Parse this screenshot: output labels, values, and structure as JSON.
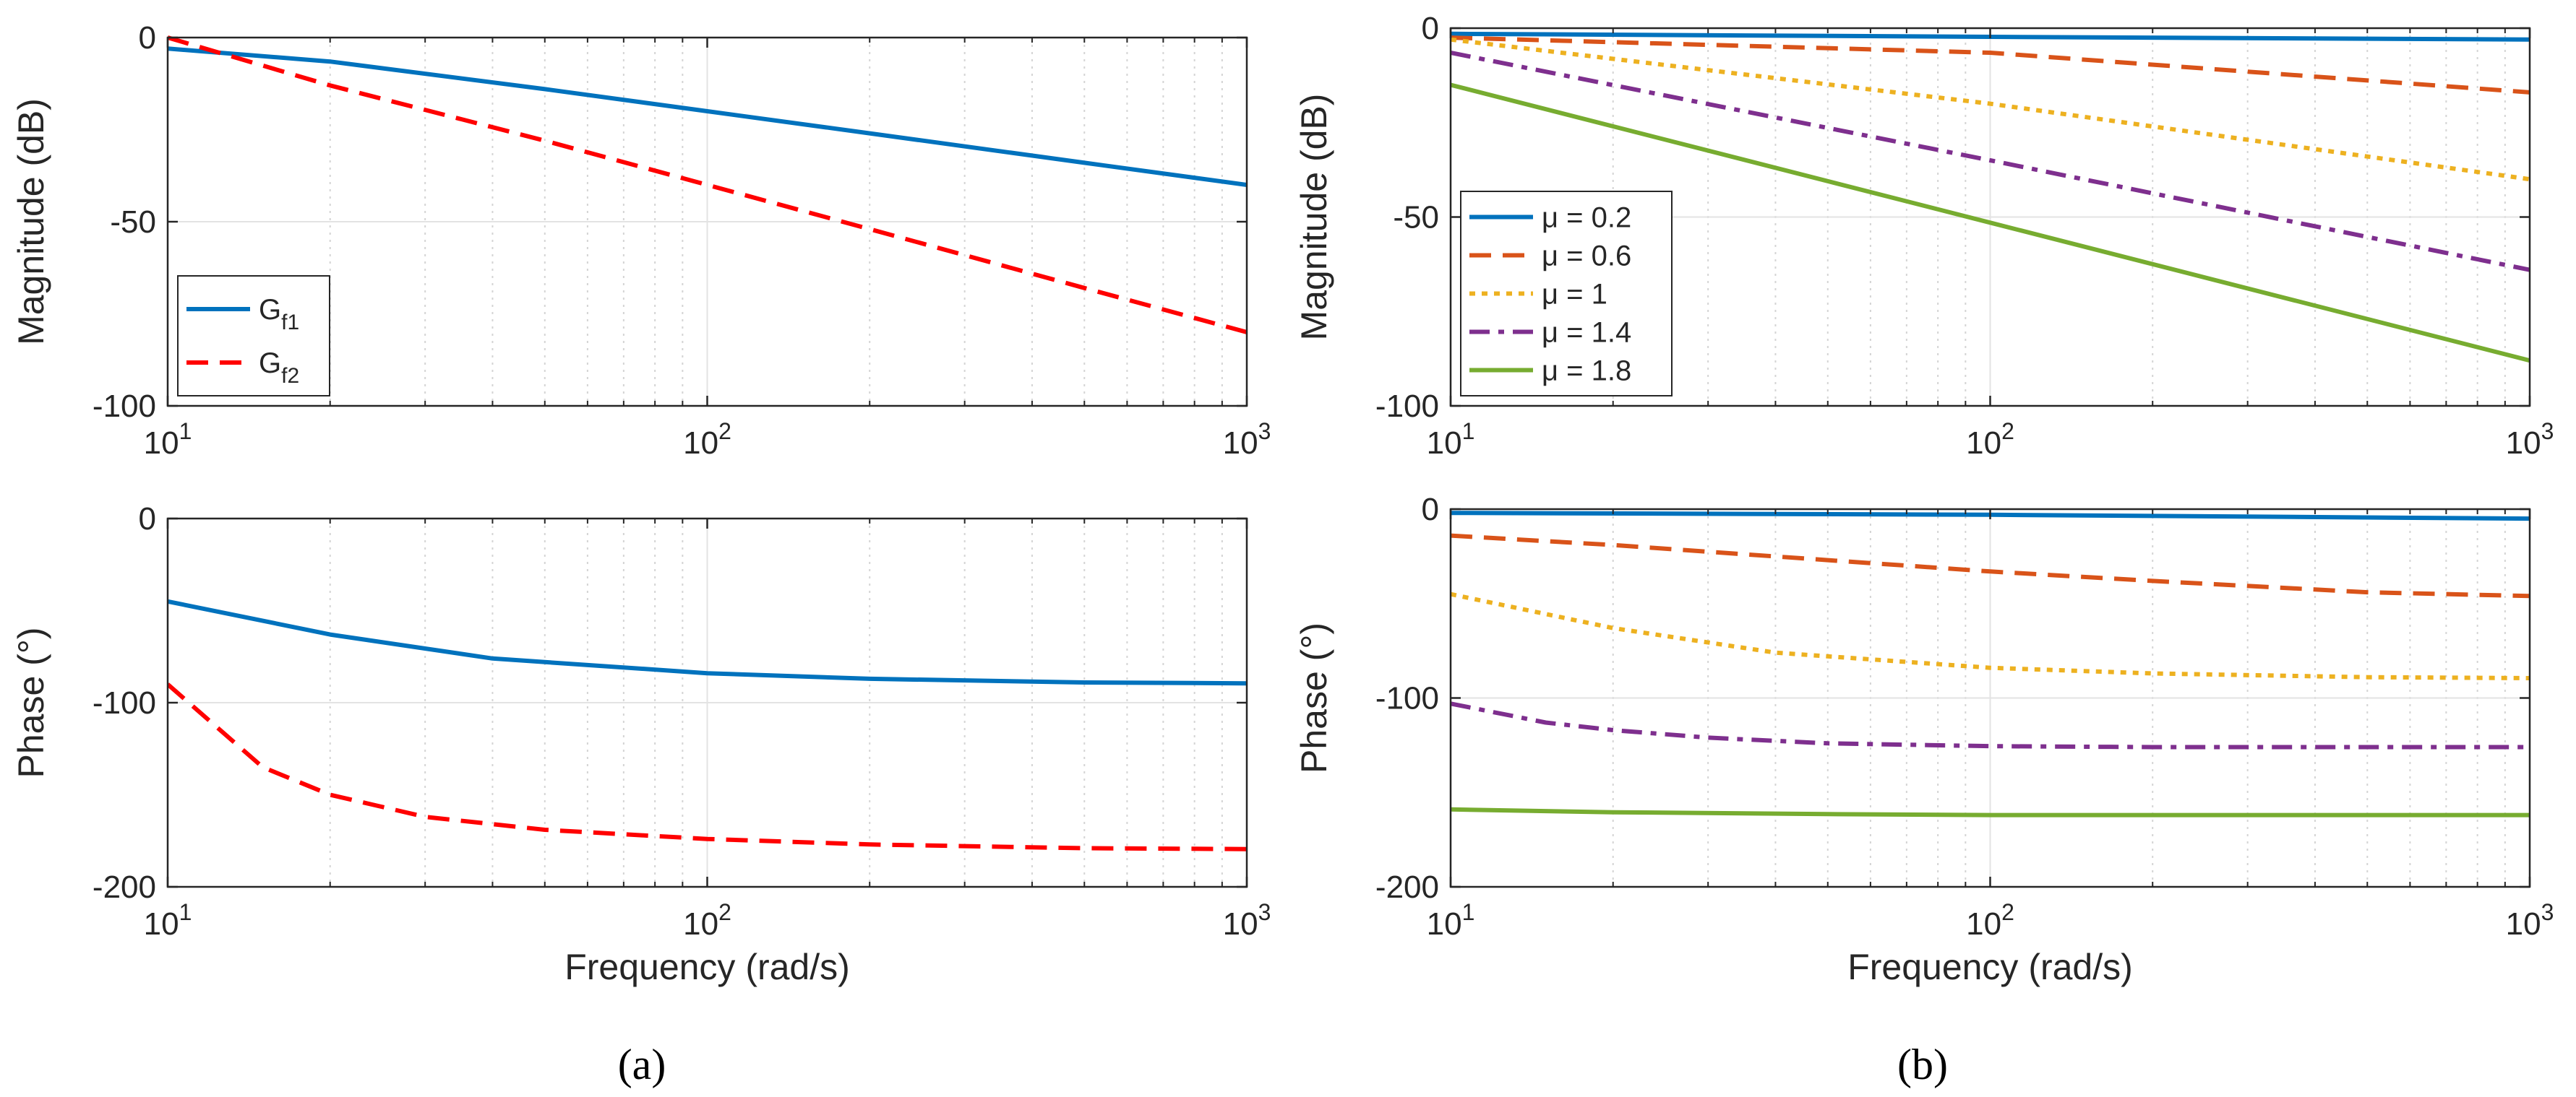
{
  "chart_data": [
    {
      "id": "a-mag",
      "type": "line",
      "xscale": "log",
      "xlim": [
        10,
        1000
      ],
      "ylim": [
        -100,
        0
      ],
      "xticks": [
        10,
        100,
        1000
      ],
      "xtick_labels": [
        {
          "base": "10",
          "exp": "1"
        },
        {
          "base": "10",
          "exp": "2"
        },
        {
          "base": "10",
          "exp": "3"
        }
      ],
      "yticks": [
        -100,
        -50,
        0
      ],
      "ytick_labels": [
        "-100",
        "-50",
        "0"
      ],
      "xlabel": "",
      "ylabel": "Magnitude (dB)",
      "grid": true,
      "legend": {
        "placement": "bottom-left"
      },
      "series": [
        {
          "name": "G",
          "sub": "f1",
          "color": "#0072BD",
          "dash": "solid",
          "x": [
            10,
            20,
            50,
            100,
            200,
            500,
            1000
          ],
          "y": [
            -3,
            -6.5,
            -14,
            -20,
            -26,
            -34,
            -40
          ]
        },
        {
          "name": "G",
          "sub": "f2",
          "color": "#FF0000",
          "dash": "dashed",
          "x": [
            10,
            20,
            50,
            100,
            200,
            500,
            1000
          ],
          "y": [
            0,
            -13,
            -28,
            -40,
            -52,
            -68,
            -80
          ]
        }
      ]
    },
    {
      "id": "a-phase",
      "type": "line",
      "xscale": "log",
      "xlim": [
        10,
        1000
      ],
      "ylim": [
        -200,
        0
      ],
      "xticks": [
        10,
        100,
        1000
      ],
      "xtick_labels": [
        {
          "base": "10",
          "exp": "1"
        },
        {
          "base": "10",
          "exp": "2"
        },
        {
          "base": "10",
          "exp": "3"
        }
      ],
      "yticks": [
        -200,
        -100,
        0
      ],
      "ytick_labels": [
        "-200",
        "-100",
        "0"
      ],
      "xlabel": "Frequency (rad/s)",
      "ylabel": "Phase (°)",
      "grid": true,
      "series": [
        {
          "name": "",
          "color": "#0072BD",
          "dash": "solid",
          "x": [
            10,
            20,
            40,
            100,
            200,
            500,
            1000
          ],
          "y": [
            -45,
            -63,
            -76,
            -84,
            -87,
            -89,
            -89.5
          ]
        },
        {
          "name": "",
          "color": "#FF0000",
          "dash": "dashed",
          "x": [
            10,
            15,
            20,
            30,
            50,
            100,
            200,
            500,
            1000
          ],
          "y": [
            -90,
            -135,
            -150,
            -162,
            -169,
            -174,
            -177,
            -179,
            -179.5
          ]
        }
      ]
    },
    {
      "id": "b-mag",
      "type": "line",
      "xscale": "log",
      "xlim": [
        10,
        1000
      ],
      "ylim": [
        -100,
        0
      ],
      "xticks": [
        10,
        100,
        1000
      ],
      "xtick_labels": [
        {
          "base": "10",
          "exp": "1"
        },
        {
          "base": "10",
          "exp": "2"
        },
        {
          "base": "10",
          "exp": "3"
        }
      ],
      "yticks": [
        -100,
        -50,
        0
      ],
      "ytick_labels": [
        "-100",
        "-50",
        "0"
      ],
      "xlabel": "",
      "ylabel": "Magnitude (dB)",
      "grid": true,
      "legend": {
        "placement": "bottom-left"
      },
      "series": [
        {
          "name": "μ = 0.2",
          "color": "#0072BD",
          "dash": "solid",
          "x": [
            10,
            100,
            1000
          ],
          "y": [
            -1.5,
            -2.3,
            -3
          ]
        },
        {
          "name": "μ = 0.6",
          "color": "#D95319",
          "dash": "dashed",
          "x": [
            10,
            100,
            1000
          ],
          "y": [
            -2.5,
            -6.5,
            -17
          ]
        },
        {
          "name": "μ = 1",
          "color": "#EDB120",
          "dash": "dotted",
          "x": [
            10,
            100,
            1000
          ],
          "y": [
            -3,
            -20,
            -40
          ]
        },
        {
          "name": "μ = 1.4",
          "color": "#7E2F8E",
          "dash": "dashdot",
          "x": [
            10,
            100,
            1000
          ],
          "y": [
            -6.5,
            -35,
            -64
          ]
        },
        {
          "name": "μ = 1.8",
          "color": "#77AC30",
          "dash": "solid",
          "x": [
            10,
            100,
            1000
          ],
          "y": [
            -15,
            -51.5,
            -88
          ]
        }
      ]
    },
    {
      "id": "b-phase",
      "type": "line",
      "xscale": "log",
      "xlim": [
        10,
        1000
      ],
      "ylim": [
        -200,
        0
      ],
      "xticks": [
        10,
        100,
        1000
      ],
      "xtick_labels": [
        {
          "base": "10",
          "exp": "1"
        },
        {
          "base": "10",
          "exp": "2"
        },
        {
          "base": "10",
          "exp": "3"
        }
      ],
      "yticks": [
        -200,
        -100,
        0
      ],
      "ytick_labels": [
        "-200",
        "-100",
        "0"
      ],
      "xlabel": "Frequency (rad/s)",
      "ylabel": "Phase (°)",
      "grid": true,
      "series": [
        {
          "name": "",
          "color": "#0072BD",
          "dash": "solid",
          "x": [
            10,
            100,
            1000
          ],
          "y": [
            -2,
            -3,
            -5
          ]
        },
        {
          "name": "",
          "color": "#D95319",
          "dash": "dashed",
          "x": [
            10,
            20,
            50,
            100,
            200,
            500,
            1000
          ],
          "y": [
            -14,
            -19,
            -27,
            -33,
            -38,
            -44,
            -46
          ]
        },
        {
          "name": "",
          "color": "#EDB120",
          "dash": "dotted",
          "x": [
            10,
            20,
            40,
            100,
            200,
            500,
            1000
          ],
          "y": [
            -45,
            -63,
            -76,
            -84,
            -87,
            -89,
            -89.5
          ]
        },
        {
          "name": "",
          "color": "#7E2F8E",
          "dash": "dashdot",
          "x": [
            10,
            15,
            20,
            30,
            50,
            100,
            200,
            500,
            1000
          ],
          "y": [
            -103,
            -113,
            -117,
            -121,
            -124,
            -125.5,
            -126,
            -126,
            -126
          ]
        },
        {
          "name": "",
          "color": "#77AC30",
          "dash": "solid",
          "x": [
            10,
            20,
            50,
            100,
            1000
          ],
          "y": [
            -159,
            -160.5,
            -161.5,
            -162,
            -162
          ]
        }
      ]
    }
  ],
  "captions": {
    "a": "(a)",
    "b": "(b)"
  }
}
